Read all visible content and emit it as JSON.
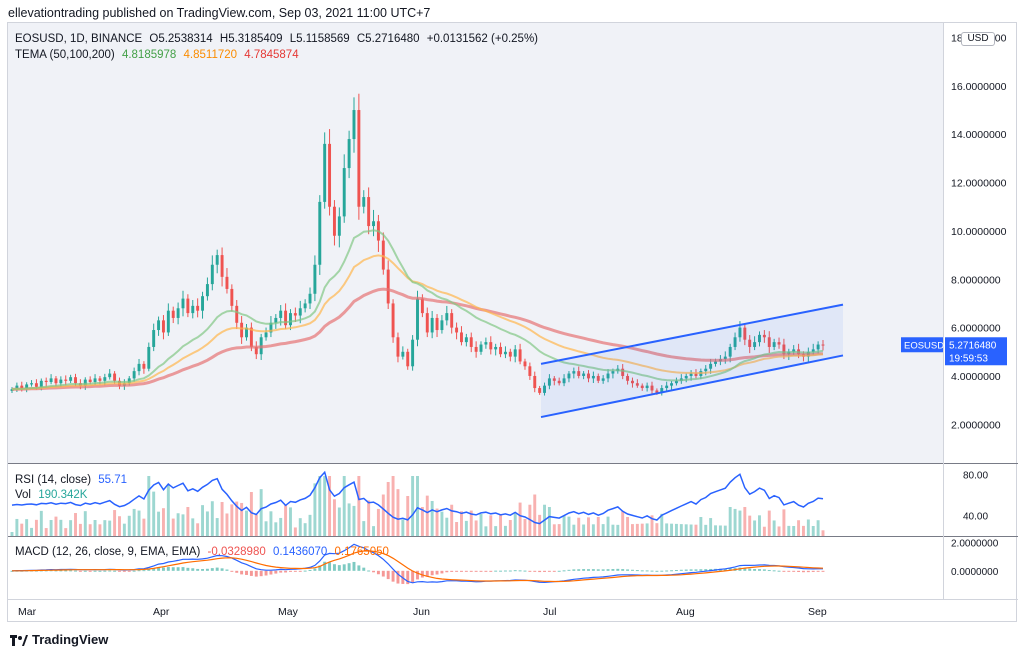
{
  "header": {
    "text": "ellevationtrading published on TradingView.com, Sep 03, 2021 11:00 UTC+7"
  },
  "main_legend": {
    "symbol": "EOSUSD, 1D, BINANCE",
    "open": "O5.2538314",
    "high": "H5.3185409",
    "low": "L5.1158569",
    "close": "C5.2716480",
    "change": "+0.0131562 (+0.25%)",
    "tema_label": "TEMA (50,100,200)",
    "tema_1": "4.8185978",
    "tema_2": "4.8511720",
    "tema_3": "4.7845874"
  },
  "currency_badge": "USD",
  "price_axis": [
    "18.0000000",
    "16.0000000",
    "14.0000000",
    "12.0000000",
    "10.0000000",
    "8.0000000",
    "6.0000000",
    "4.0000000",
    "2.0000000"
  ],
  "price_tag": {
    "symbol": "EOSUSD",
    "price": "5.2716480",
    "countdown": "19:59:53"
  },
  "rsi_legend": {
    "label": "RSI (14, close)",
    "value": "55.71",
    "vol_label": "Vol",
    "vol_value": "190.342K"
  },
  "rsi_axis": [
    "80.00",
    "40.00"
  ],
  "macd_legend": {
    "label": "MACD (12, 26, close, 9, EMA, EMA)",
    "v1": "-0.0328980",
    "v2": "0.1436070",
    "v3": "0.1765050"
  },
  "macd_axis": [
    "2.0000000",
    "0.0000000"
  ],
  "time_axis": [
    "Mar",
    "Apr",
    "May",
    "Jun",
    "Jul",
    "Aug",
    "Sep"
  ],
  "footer": {
    "brand": "TradingView"
  },
  "colors": {
    "up": "#26a69a",
    "down": "#ef5350",
    "tema_fast": "#81c784",
    "tema_mid": "#ffb74d",
    "tema_slow": "#e57373",
    "channel": "#2962ff",
    "rsi": "#2962ff",
    "macd": "#2962ff",
    "signal": "#ff6d00",
    "tag": "#2962ff"
  },
  "chart_data": {
    "type": "candlestick",
    "closes": [
      3.45,
      3.6,
      3.5,
      3.65,
      3.7,
      3.55,
      3.8,
      3.75,
      3.9,
      3.7,
      3.85,
      3.8,
      3.95,
      3.7,
      3.6,
      3.85,
      3.75,
      3.9,
      3.8,
      3.95,
      4.1,
      3.8,
      3.6,
      3.7,
      3.9,
      4.2,
      4.5,
      4.3,
      5.2,
      5.9,
      6.3,
      5.8,
      6.7,
      6.4,
      6.8,
      7.2,
      6.6,
      6.9,
      6.7,
      7.3,
      7.8,
      8.6,
      9.0,
      8.1,
      7.6,
      6.9,
      6.2,
      5.6,
      6.0,
      5.2,
      4.9,
      5.6,
      5.8,
      6.2,
      6.4,
      6.7,
      6.1,
      6.6,
      6.5,
      6.8,
      7.0,
      7.4,
      8.6,
      11.2,
      13.6,
      11.0,
      9.8,
      10.6,
      12.6,
      13.8,
      15.0,
      11.0,
      11.4,
      10.2,
      10.4,
      9.6,
      8.4,
      7.0,
      5.6,
      4.8,
      5.0,
      4.4,
      5.5,
      7.2,
      6.6,
      5.8,
      6.4,
      5.9,
      6.3,
      6.6,
      6.0,
      5.8,
      5.4,
      5.6,
      5.2,
      5.0,
      5.3,
      5.4,
      5.1,
      5.2,
      4.9,
      5.0,
      4.8,
      5.1,
      4.6,
      4.4,
      4.0,
      3.5,
      3.3,
      3.6,
      3.9,
      3.8,
      3.7,
      3.9,
      4.1,
      4.2,
      4.0,
      4.1,
      3.9,
      4.0,
      3.8,
      3.9,
      4.1,
      4.2,
      4.3,
      4.0,
      3.8,
      3.7,
      3.6,
      3.5,
      3.6,
      3.4,
      3.3,
      3.5,
      3.6,
      3.7,
      3.8,
      3.9,
      4.0,
      4.1,
      4.0,
      4.2,
      4.3,
      4.5,
      4.6,
      4.7,
      4.8,
      5.2,
      5.6,
      6.0,
      5.5,
      5.2,
      5.4,
      5.7,
      5.6,
      5.2,
      5.4,
      5.3,
      4.9,
      5.0,
      5.1,
      4.9,
      4.8,
      5.0,
      5.1,
      5.3,
      5.27
    ],
    "price_range": [
      0.4,
      18.6
    ],
    "channel": {
      "upper": [
        [
          4.5,
          7.1
        ],
        [
          4.4,
          4.3
        ]
      ],
      "lower": [
        [
          2.3,
          4.85
        ]
      ]
    },
    "tema_50": 4.8185978,
    "tema_100": 4.851172,
    "tema_200": 4.7845874,
    "rsi_range": [
      20,
      90
    ],
    "macd_range": [
      -2.0,
      2.4
    ]
  }
}
